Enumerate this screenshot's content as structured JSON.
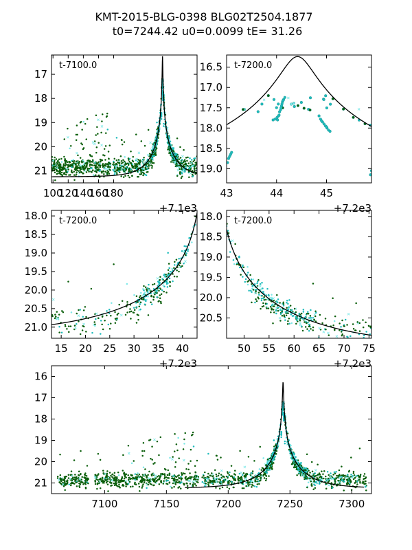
{
  "chart_data": {
    "type": "scatter",
    "title_line1": "KMT-2015-BLG-0398 BLG02T2504.1877",
    "title_line2": "t0=7244.42 u0=0.0099 tE=  31.26",
    "model": {
      "t0": 7244.42,
      "u0": 0.0099,
      "tE": 31.26,
      "mag_base": 21.25
    },
    "series_colors": {
      "dark": "#0b5e0b",
      "cyan": "#1fbcbc",
      "light": "#7de8e8",
      "model": "#000000"
    },
    "panels": [
      {
        "id": "p1",
        "label": "t-7100.0",
        "xlim": [
          7098,
          7290
        ],
        "ylim": [
          21.5,
          16.2
        ],
        "xticks": [
          7100,
          7120,
          7140,
          7160,
          7180
        ],
        "xtick_labels": [
          "100",
          "120",
          "140",
          "160",
          "180"
        ],
        "yticks": [
          17,
          18,
          19,
          20,
          21
        ],
        "ytick_labels": [
          "17",
          "18",
          "19",
          "20",
          "21"
        ],
        "offset_text": "+7.1e3"
      },
      {
        "id": "p2",
        "label": "t-7200.0",
        "xlim": [
          7243.0,
          7245.9
        ],
        "ylim": [
          19.35,
          16.2
        ],
        "xticks": [
          7243,
          7244,
          7245
        ],
        "xtick_labels": [
          "43",
          "44",
          "45"
        ],
        "yticks": [
          16.5,
          17.0,
          17.5,
          18.0,
          18.5,
          19.0
        ],
        "ytick_labels": [
          "16.5",
          "17.0",
          "17.5",
          "18.0",
          "18.5",
          "19.0"
        ],
        "offset_text": "+7.2e3"
      },
      {
        "id": "p3",
        "label": "t-7200.0",
        "xlim": [
          7213,
          7243
        ],
        "ylim": [
          21.3,
          17.85
        ],
        "xticks": [
          7215,
          7220,
          7225,
          7230,
          7235,
          7240
        ],
        "xtick_labels": [
          "15",
          "20",
          "25",
          "30",
          "35",
          "40"
        ],
        "yticks": [
          18.0,
          18.5,
          19.0,
          19.5,
          20.0,
          20.5,
          21.0
        ],
        "ytick_labels": [
          "18.0",
          "18.5",
          "19.0",
          "19.5",
          "20.0",
          "20.5",
          "21.0"
        ],
        "offset_text": "+7.2e3"
      },
      {
        "id": "p4",
        "label": "t-7200.0",
        "xlim": [
          7246.5,
          7275.5
        ],
        "ylim": [
          21.0,
          17.85
        ],
        "xticks": [
          7250,
          7255,
          7260,
          7265,
          7270,
          7275
        ],
        "xtick_labels": [
          "50",
          "55",
          "60",
          "65",
          "70",
          "75"
        ],
        "yticks": [
          18.0,
          18.5,
          19.0,
          19.5,
          20.0,
          20.5
        ],
        "ytick_labels": [
          "18.0",
          "18.5",
          "19.0",
          "19.5",
          "20.0",
          "20.5"
        ],
        "offset_text": "+7.2e3"
      },
      {
        "id": "p5",
        "label": "",
        "xlim": [
          7057,
          7316
        ],
        "ylim": [
          21.5,
          15.5
        ],
        "xticks": [
          7100,
          7150,
          7200,
          7250,
          7300
        ],
        "xtick_labels": [
          "7100",
          "7150",
          "7200",
          "7250",
          "7300"
        ],
        "yticks": [
          16,
          17,
          18,
          19,
          20,
          21
        ],
        "ytick_labels": [
          "16",
          "17",
          "18",
          "19",
          "20",
          "21"
        ],
        "offset_text": "",
        "model_range": [
          7165,
          7310
        ]
      }
    ]
  }
}
